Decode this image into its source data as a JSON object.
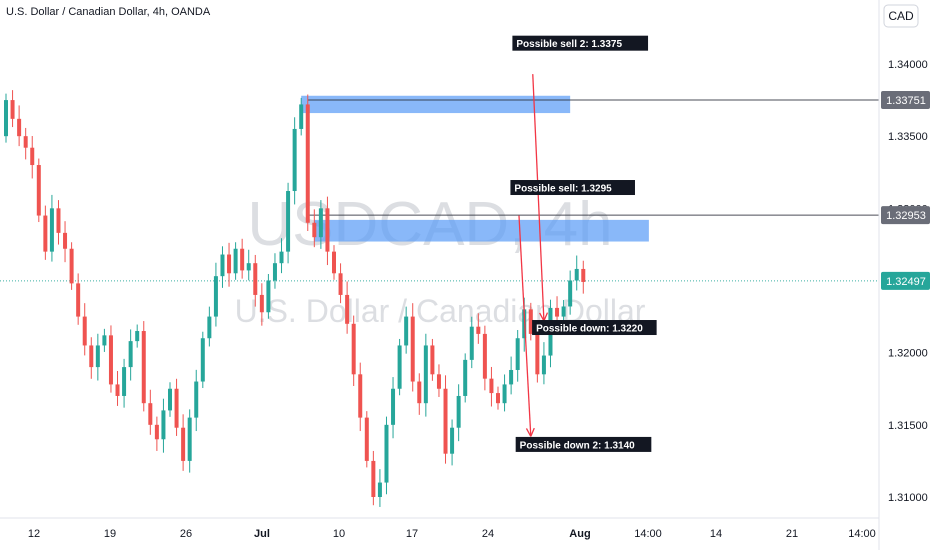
{
  "header": {
    "symbol_line": "U.S. Dollar / Canadian Dollar, 4h, OANDA",
    "currency": "CAD"
  },
  "watermark": {
    "ticker": "USDCAD, 4h",
    "description": "U.S. Dollar / Canadian Dollar"
  },
  "colors": {
    "up": "#26a69a",
    "down": "#ef5350",
    "zone": "#5b9cf6",
    "arrow": "#f23645",
    "current_price": "#26a69a",
    "level_line": "#2a2e39"
  },
  "chart_data": {
    "type": "candlestick",
    "title": "",
    "xlabel": "",
    "ylabel": "",
    "ylim": [
      1.3085,
      1.3475
    ],
    "x_ticks": [
      "12",
      "19",
      "26",
      "Jul",
      "10",
      "17",
      "24",
      "Aug",
      "14:00",
      "14",
      "21",
      "14:00"
    ],
    "y_ticks": [
      "1.34000",
      "1.33500",
      "1.33000",
      "1.32500",
      "1.32000",
      "1.31500",
      "1.31000"
    ],
    "price_labels": [
      {
        "label": "1.33751",
        "value": 1.33751,
        "kind": "level"
      },
      {
        "label": "1.32953",
        "value": 1.32953,
        "kind": "level"
      },
      {
        "label": "1.32497",
        "value": 1.32497,
        "kind": "current"
      }
    ],
    "zones": [
      {
        "from": 1.3366,
        "to": 1.3378,
        "start_bar": 45,
        "end_bar": 86
      },
      {
        "from": 1.3277,
        "to": 1.3292,
        "start_bar": 47,
        "end_bar": 98
      }
    ],
    "annotations": [
      {
        "text": "Possible sell 2: 1.3375",
        "bar": 77.5,
        "price": 1.3412
      },
      {
        "text": "Possible sell: 1.3295",
        "bar": 77.2,
        "price": 1.3312
      },
      {
        "text": "Possible down: 1.3220",
        "bar": 80.5,
        "price": 1.3215
      },
      {
        "text": "Possible down 2: 1.3140",
        "bar": 78,
        "price": 1.3134
      }
    ],
    "arrows": [
      {
        "from_bar": 80.3,
        "from_price": 1.3393,
        "to_bar": 82,
        "to_price": 1.3222
      },
      {
        "from_bar": 78.2,
        "from_price": 1.3295,
        "to_bar": 80,
        "to_price": 1.3142
      }
    ],
    "closes": [
      1.3375,
      1.3362,
      1.335,
      1.3342,
      1.333,
      1.3295,
      1.327,
      1.33,
      1.3283,
      1.3272,
      1.3248,
      1.3225,
      1.3205,
      1.319,
      1.3205,
      1.3212,
      1.3178,
      1.317,
      1.319,
      1.3208,
      1.3215,
      1.3165,
      1.315,
      1.314,
      1.316,
      1.3175,
      1.3148,
      1.3125,
      1.3155,
      1.318,
      1.321,
      1.3225,
      1.3253,
      1.3268,
      1.3255,
      1.3272,
      1.3257,
      1.3262,
      1.324,
      1.3228,
      1.325,
      1.3262,
      1.327,
      1.3312,
      1.3355,
      1.3372,
      1.329,
      1.328,
      1.33,
      1.327,
      1.3255,
      1.324,
      1.322,
      1.3185,
      1.3155,
      1.3125,
      1.31,
      1.311,
      1.315,
      1.3175,
      1.3205,
      1.3225,
      1.318,
      1.3165,
      1.3205,
      1.3185,
      1.3175,
      1.313,
      1.3148,
      1.317,
      1.3195,
      1.3218,
      1.3213,
      1.3182,
      1.3172,
      1.3165,
      1.3178,
      1.3188,
      1.321,
      1.323,
      1.3213,
      1.3185,
      1.3198,
      1.3231,
      1.3225,
      1.3232,
      1.325,
      1.3258,
      1.3249
    ]
  }
}
